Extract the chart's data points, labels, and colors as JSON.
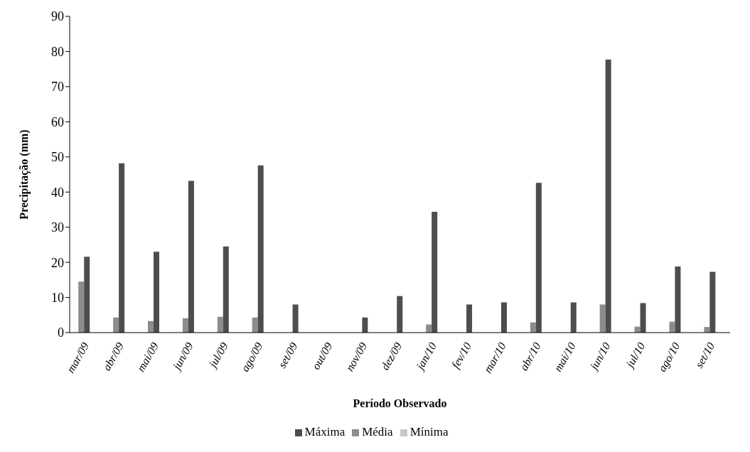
{
  "chart_data": {
    "type": "bar",
    "xlabel": "Período Observado",
    "ylabel": "Precipitação (mm)",
    "categories": [
      "mar/09",
      "abr/09",
      "mai/09",
      "jun/09",
      "jul/09",
      "ago/09",
      "set/09",
      "out/09",
      "nov/09",
      "dez/09",
      "jan/10",
      "fev/10",
      "mar/10",
      "abr/10",
      "mai/10",
      "jun/10",
      "jul/10",
      "ago/10",
      "set/10"
    ],
    "series": [
      {
        "name": "Média",
        "color": "#8c8c8c",
        "values": [
          14.5,
          4.3,
          3.3,
          4.1,
          4.5,
          4.3,
          0,
          0,
          0,
          0,
          2.3,
          0,
          0,
          2.9,
          0,
          8,
          1.7,
          3.1,
          1.6
        ]
      },
      {
        "name": "Máxima",
        "color": "#4d4d4d",
        "values": [
          21.6,
          48.2,
          23,
          43.2,
          24.5,
          47.6,
          8,
          0,
          4.3,
          10.4,
          34.4,
          8,
          8.6,
          42.6,
          8.6,
          77.7,
          8.4,
          18.8,
          17.3
        ]
      },
      {
        "name": "Mínima",
        "color": "#c8c8c8",
        "values": [
          0,
          0,
          0,
          0,
          0,
          0,
          0,
          0,
          0,
          0,
          0,
          0,
          0,
          0,
          0,
          0,
          0,
          0,
          0
        ]
      }
    ],
    "ylim": [
      0,
      90
    ],
    "yticks": [
      0,
      10,
      20,
      30,
      40,
      50,
      60,
      70,
      80,
      90
    ],
    "grid": false,
    "legend": "bottom"
  }
}
